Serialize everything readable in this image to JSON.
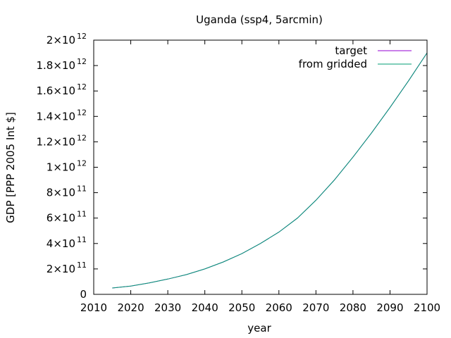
{
  "chart_data": {
    "type": "line",
    "title": "Uganda (ssp4, 5arcmin)",
    "xlabel": "year",
    "ylabel": "GDP [PPP 2005 Int $]",
    "xlim": [
      2010,
      2100
    ],
    "ylim": [
      0,
      2000000000000
    ],
    "x_ticks": [
      2010,
      2020,
      2030,
      2040,
      2050,
      2060,
      2070,
      2080,
      2090,
      2100
    ],
    "y_ticks": [
      {
        "value": 0,
        "mantissa": "0",
        "exponent": ""
      },
      {
        "value": 200000000000,
        "mantissa": "2×10",
        "exponent": "11"
      },
      {
        "value": 400000000000,
        "mantissa": "4×10",
        "exponent": "11"
      },
      {
        "value": 600000000000,
        "mantissa": "6×10",
        "exponent": "11"
      },
      {
        "value": 800000000000,
        "mantissa": "8×10",
        "exponent": "11"
      },
      {
        "value": 1000000000000,
        "mantissa": "1×10",
        "exponent": "12"
      },
      {
        "value": 1200000000000,
        "mantissa": "1.2×10",
        "exponent": "12"
      },
      {
        "value": 1400000000000,
        "mantissa": "1.4×10",
        "exponent": "12"
      },
      {
        "value": 1600000000000,
        "mantissa": "1.6×10",
        "exponent": "12"
      },
      {
        "value": 1800000000000,
        "mantissa": "1.8×10",
        "exponent": "12"
      },
      {
        "value": 2000000000000,
        "mantissa": "2×10",
        "exponent": "12"
      }
    ],
    "grid": false,
    "legend_position": "top-right",
    "x": [
      2015,
      2020,
      2025,
      2030,
      2035,
      2040,
      2045,
      2050,
      2055,
      2060,
      2065,
      2070,
      2075,
      2080,
      2085,
      2090,
      2095,
      2100
    ],
    "series": [
      {
        "name": "target",
        "color": "#9400d3",
        "values": [
          50000000000,
          65000000000,
          90000000000,
          120000000000,
          155000000000,
          200000000000,
          255000000000,
          320000000000,
          400000000000,
          490000000000,
          600000000000,
          740000000000,
          900000000000,
          1080000000000,
          1270000000000,
          1470000000000,
          1680000000000,
          1900000000000
        ]
      },
      {
        "name": "from gridded",
        "color": "#009e73",
        "values": [
          50000000000,
          65000000000,
          90000000000,
          120000000000,
          155000000000,
          200000000000,
          255000000000,
          320000000000,
          400000000000,
          490000000000,
          600000000000,
          740000000000,
          900000000000,
          1080000000000,
          1270000000000,
          1470000000000,
          1680000000000,
          1900000000000
        ]
      }
    ]
  }
}
